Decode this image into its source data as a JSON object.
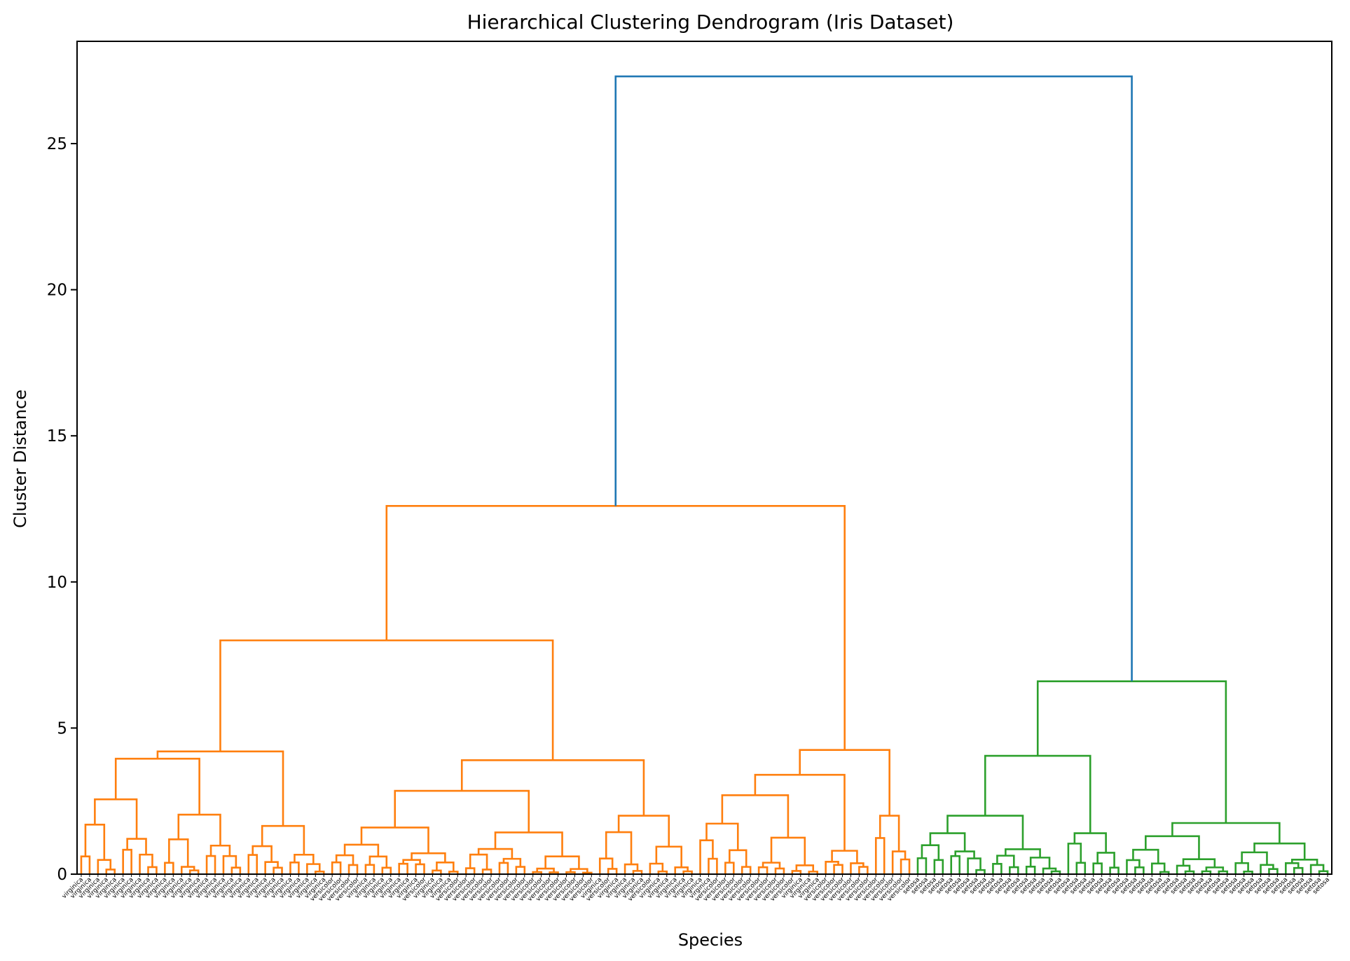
{
  "chart_data": {
    "type": "dendrogram",
    "title": "Hierarchical Clustering Dendrogram (Iris Dataset)",
    "xlabel": "Species",
    "ylabel": "Cluster Distance",
    "ylim": [
      0,
      28.5
    ],
    "yticks": [
      0,
      5,
      10,
      15,
      20,
      25
    ],
    "ytick_labels": [
      "0",
      "5",
      "10",
      "15",
      "20",
      "25"
    ],
    "colors": {
      "above_threshold": "#1f77b4",
      "cluster_orange": "#ff7f0e",
      "cluster_green": "#2ca02c"
    },
    "clusters": [
      {
        "color": "#ff7f0e",
        "leaf_count": 100
      },
      {
        "color": "#2ca02c",
        "leaf_count": 50
      }
    ],
    "major_merges": [
      {
        "height": 27.3,
        "children": [
          "orange",
          "green"
        ],
        "color": "#1f77b4"
      },
      {
        "height": 12.6,
        "color": "#ff7f0e"
      },
      {
        "height": 8.0,
        "color": "#ff7f0e"
      },
      {
        "height": 6.6,
        "color": "#2ca02c"
      },
      {
        "height": 4.25,
        "color": "#ff7f0e"
      },
      {
        "height": 4.2,
        "color": "#ff7f0e"
      },
      {
        "height": 4.05,
        "color": "#2ca02c"
      },
      {
        "height": 3.95,
        "color": "#ff7f0e"
      },
      {
        "height": 3.9,
        "color": "#ff7f0e"
      },
      {
        "height": 3.4,
        "color": "#ff7f0e"
      },
      {
        "height": 2.85,
        "color": "#ff7f0e"
      },
      {
        "height": 2.7,
        "color": "#ff7f0e"
      },
      {
        "height": 2.0,
        "color": "#2ca02c"
      },
      {
        "height": 1.75,
        "color": "#2ca02c"
      }
    ],
    "leaf_labels": [
      "virginica",
      "virginica",
      "virginica",
      "virginica",
      "virginica",
      "virginica",
      "virginica",
      "virginica",
      "virginica",
      "virginica",
      "virginica",
      "virginica",
      "virginica",
      "virginica",
      "virginica",
      "virginica",
      "virginica",
      "virginica",
      "virginica",
      "virginica",
      "virginica",
      "virginica",
      "virginica",
      "virginica",
      "virginica",
      "virginica",
      "virginica",
      "virginica",
      "virginica",
      "virginica",
      "versicolor",
      "versicolor",
      "versicolor",
      "versicolor",
      "virginica",
      "virginica",
      "virginica",
      "virginica",
      "virginica",
      "virginica",
      "virginica",
      "versicolor",
      "virginica",
      "virginica",
      "virginica",
      "versicolor",
      "versicolor",
      "versicolor",
      "versicolor",
      "versicolor",
      "versicolor",
      "versicolor",
      "versicolor",
      "versicolor",
      "versicolor",
      "versicolor",
      "versicolor",
      "versicolor",
      "versicolor",
      "versicolor",
      "versicolor",
      "versicolor",
      "virginica",
      "versicolor",
      "virginica",
      "virginica",
      "virginica",
      "virginica",
      "versicolor",
      "virginica",
      "virginica",
      "virginica",
      "virginica",
      "virginica",
      "virginica",
      "virginica",
      "versicolor",
      "versicolor",
      "versicolor",
      "versicolor",
      "versicolor",
      "versicolor",
      "versicolor",
      "versicolor",
      "versicolor",
      "versicolor",
      "virginica",
      "virginica",
      "virginica",
      "versicolor",
      "versicolor",
      "versicolor",
      "versicolor",
      "versicolor",
      "versicolor",
      "versicolor",
      "versicolor",
      "versicolor",
      "versicolor",
      "versicolor",
      "setosa",
      "setosa",
      "setosa",
      "setosa",
      "setosa",
      "setosa",
      "setosa",
      "setosa",
      "setosa",
      "setosa",
      "setosa",
      "setosa",
      "setosa",
      "setosa",
      "setosa",
      "setosa",
      "setosa",
      "setosa",
      "setosa",
      "setosa",
      "setosa",
      "setosa",
      "setosa",
      "setosa",
      "setosa",
      "setosa",
      "setosa",
      "setosa",
      "setosa",
      "setosa",
      "setosa",
      "setosa",
      "setosa",
      "setosa",
      "setosa",
      "setosa",
      "setosa",
      "setosa",
      "setosa",
      "setosa",
      "setosa",
      "setosa",
      "setosa",
      "setosa",
      "setosa",
      "setosa",
      "setosa",
      "setosa",
      "setosa",
      "setosa"
    ]
  }
}
